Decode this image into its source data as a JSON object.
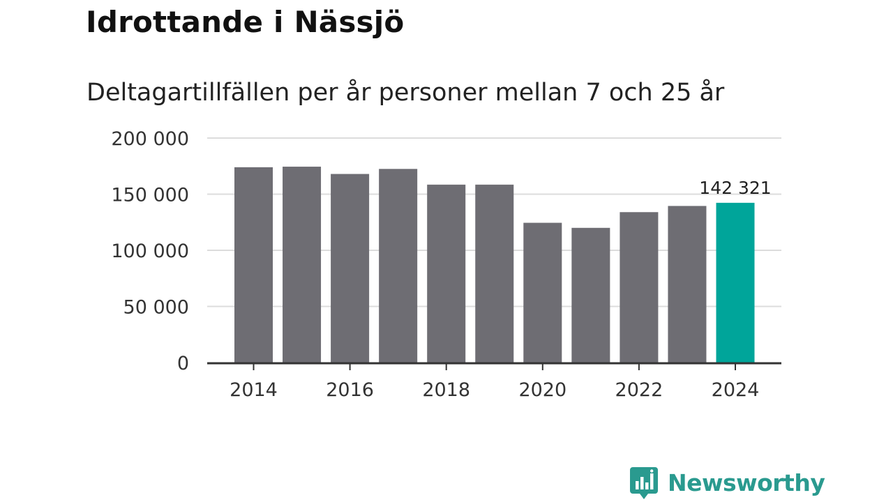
{
  "chart_data": {
    "type": "bar",
    "title": "Idrottande i Nässjö",
    "subtitle": "Deltagartillfällen per år personer mellan 7 och 25 år",
    "xlabel": "",
    "ylabel": "",
    "ylim": [
      0,
      200000
    ],
    "yticks": [
      0,
      50000,
      100000,
      150000,
      200000
    ],
    "ytick_labels": [
      "0",
      "50 000",
      "100 000",
      "150 000",
      "200 000"
    ],
    "categories": [
      "2014",
      "2015",
      "2016",
      "2017",
      "2018",
      "2019",
      "2020",
      "2021",
      "2022",
      "2023",
      "2024"
    ],
    "xtick_labels": [
      "2014",
      "2016",
      "2018",
      "2020",
      "2022",
      "2024"
    ],
    "values": [
      174000,
      174500,
      168000,
      172500,
      158500,
      158500,
      124500,
      120000,
      134000,
      139500,
      142321
    ],
    "highlight_index": 10,
    "highlight_label": "142 321",
    "grid": true,
    "colors": {
      "bar": "#6e6d73",
      "highlight": "#00a59a",
      "grid": "#dcdcdc",
      "axis": "#333333"
    }
  },
  "branding": {
    "logo_text": "Newsworthy",
    "logo_icon": "newsworthy-chart-icon",
    "logo_color": "#2a9a8f"
  }
}
